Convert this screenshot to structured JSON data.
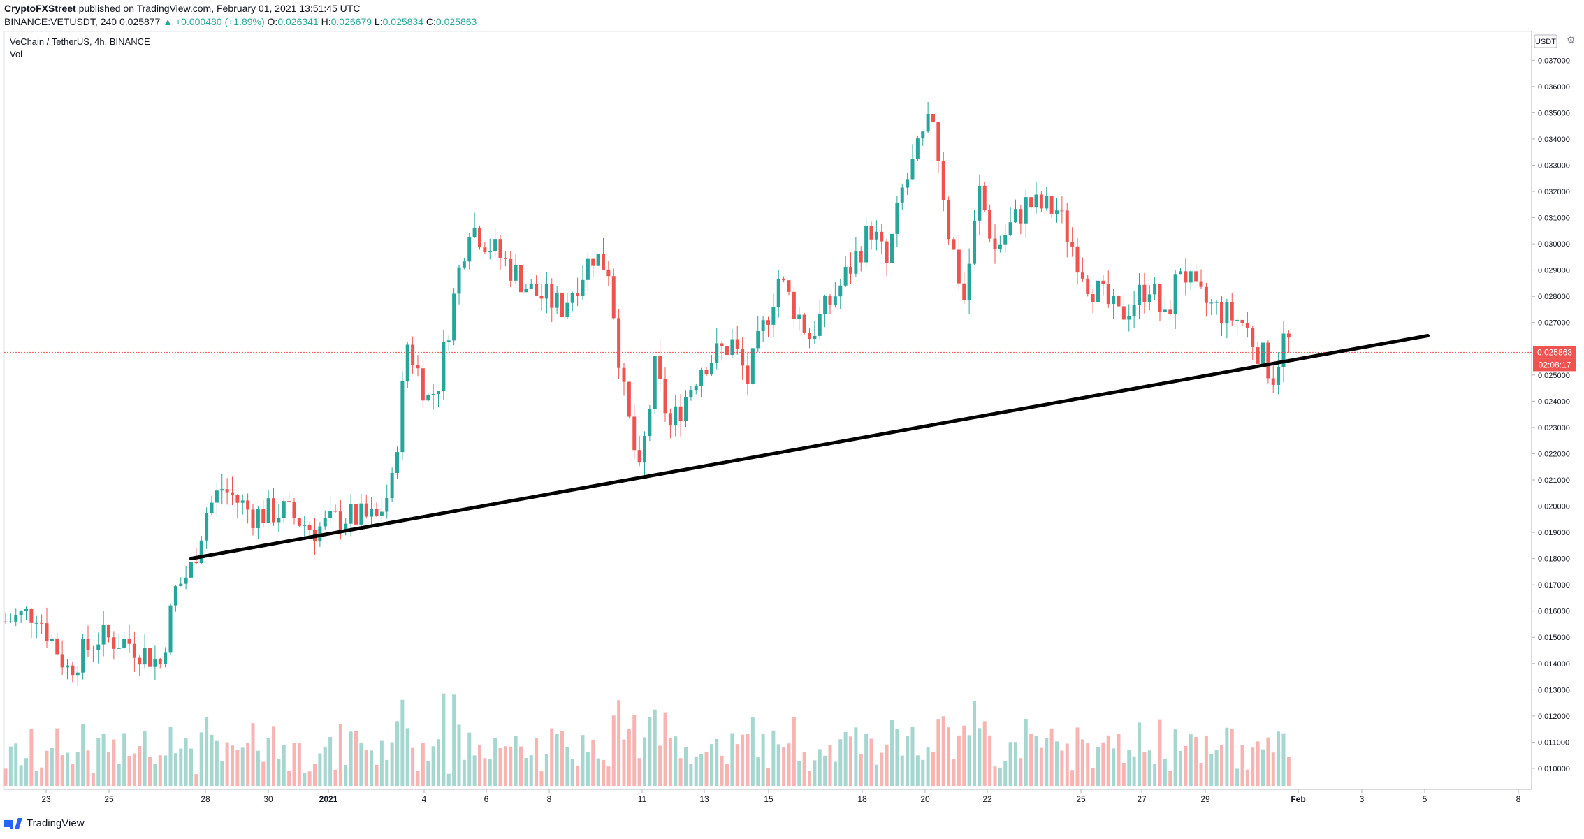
{
  "header": {
    "publisher": "CryptoFXStreet",
    "published_text": "published on TradingView.com, February 01, 2021 13:51:45 UTC",
    "symbol_line": "BINANCE:VETUSDT, 240",
    "last_price": "0.025877",
    "change": "+0.000480 (+1.89%)",
    "o_label": "O:",
    "o_value": "0.026341",
    "h_label": "H:",
    "h_value": "0.026679",
    "l_label": "L:",
    "l_value": "0.025834",
    "c_label": "C:",
    "c_value": "0.025863"
  },
  "footer": {
    "brand": "TradingView"
  },
  "colors": {
    "up": "#26a69a",
    "down": "#ef5350",
    "vol_up": "#a5d6d0",
    "vol_down": "#f7b4b3",
    "trendline": "#000000",
    "price_line": "#ef5350"
  },
  "chart_data": {
    "type": "candlestick",
    "title": "VeChain / TetherUS, 4h, BINANCE",
    "subtitle": "Vol",
    "currency_label": "USDT",
    "ylim": [
      0.0092,
      0.0381
    ],
    "y_ticks": [
      "0.037000",
      "0.036000",
      "0.035000",
      "0.034000",
      "0.033000",
      "0.032000",
      "0.031000",
      "0.030000",
      "0.029000",
      "0.028000",
      "0.027000",
      "0.025000",
      "0.024000",
      "0.023000",
      "0.022000",
      "0.021000",
      "0.020000",
      "0.019000",
      "0.018000",
      "0.017000",
      "0.016000",
      "0.015000",
      "0.014000",
      "0.013000",
      "0.012000",
      "0.011000",
      "0.010000"
    ],
    "x_ticks": [
      "23",
      "25",
      "28",
      "30",
      "2021",
      "4",
      "6",
      "8",
      "11",
      "13",
      "15",
      "18",
      "20",
      "22",
      "25",
      "27",
      "29",
      "Feb",
      "3",
      "5",
      "8"
    ],
    "current_price_label": "0.025863",
    "countdown_label": "02:08:17",
    "current_price": 0.025863,
    "trendline": {
      "start": [
        "Dec 28",
        0.018
      ],
      "end": [
        "Feb 6",
        0.0265
      ],
      "color": "#000000"
    },
    "price_anchors": [
      [
        "Dec 22",
        0.0156
      ],
      [
        "Dec 23",
        0.016
      ],
      [
        "Dec 24",
        0.0138
      ],
      [
        "Dec 25",
        0.015
      ],
      [
        "Dec 26",
        0.0148
      ],
      [
        "Dec 27",
        0.014
      ],
      [
        "Dec 27.5",
        0.0168
      ],
      [
        "Dec 28",
        0.0176
      ],
      [
        "Dec 28.5",
        0.0198
      ],
      [
        "Dec 29",
        0.0207
      ],
      [
        "Dec 30",
        0.0197
      ],
      [
        "Dec 31",
        0.0198
      ],
      [
        "Jan 1",
        0.0191
      ],
      [
        "Jan 2",
        0.0196
      ],
      [
        "Jan 3",
        0.0195
      ],
      [
        "Jan 3.5",
        0.0208
      ],
      [
        "Jan 4",
        0.0262
      ],
      [
        "Jan 4.7",
        0.024
      ],
      [
        "Jan 5",
        0.0248
      ],
      [
        "Jan 5.7",
        0.0292
      ],
      [
        "Jan 6",
        0.0308
      ],
      [
        "Jan 7",
        0.0295
      ],
      [
        "Jan 8",
        0.0282
      ],
      [
        "Jan 9",
        0.0276
      ],
      [
        "Jan 10",
        0.0296
      ],
      [
        "Jan 10.5",
        0.0291
      ],
      [
        "Jan 11",
        0.0242
      ],
      [
        "Jan 11.5",
        0.0211
      ],
      [
        "Jan 12",
        0.0252
      ],
      [
        "Jan 12.5",
        0.023
      ],
      [
        "Jan 13.5",
        0.0254
      ],
      [
        "Jan 14.5",
        0.0262
      ],
      [
        "Jan 15",
        0.0248
      ],
      [
        "Jan 16",
        0.0287
      ],
      [
        "Jan 17",
        0.0265
      ],
      [
        "Jan 18",
        0.0284
      ],
      [
        "Jan 19",
        0.0306
      ],
      [
        "Jan 19.5",
        0.0292
      ],
      [
        "Jan 20",
        0.032
      ],
      [
        "Jan 21",
        0.0349
      ],
      [
        "Jan 21.5",
        0.0305
      ],
      [
        "Jan 22",
        0.0279
      ],
      [
        "Jan 22.5",
        0.032
      ],
      [
        "Jan 23",
        0.0298
      ],
      [
        "Jan 24",
        0.0315
      ],
      [
        "Jan 25",
        0.0313
      ],
      [
        "Jan 26",
        0.0286
      ],
      [
        "Jan 27",
        0.0272
      ],
      [
        "Jan 28",
        0.0285
      ],
      [
        "Jan 28.5",
        0.027
      ],
      [
        "Jan 29",
        0.0292
      ],
      [
        "Jan 29.5",
        0.028
      ],
      [
        "Jan 30",
        0.0276
      ],
      [
        "Jan 31",
        0.027
      ],
      [
        "Feb 1",
        0.025
      ],
      [
        "Feb 1.4",
        0.0266
      ],
      [
        "Feb 1.6",
        0.0259
      ]
    ]
  }
}
